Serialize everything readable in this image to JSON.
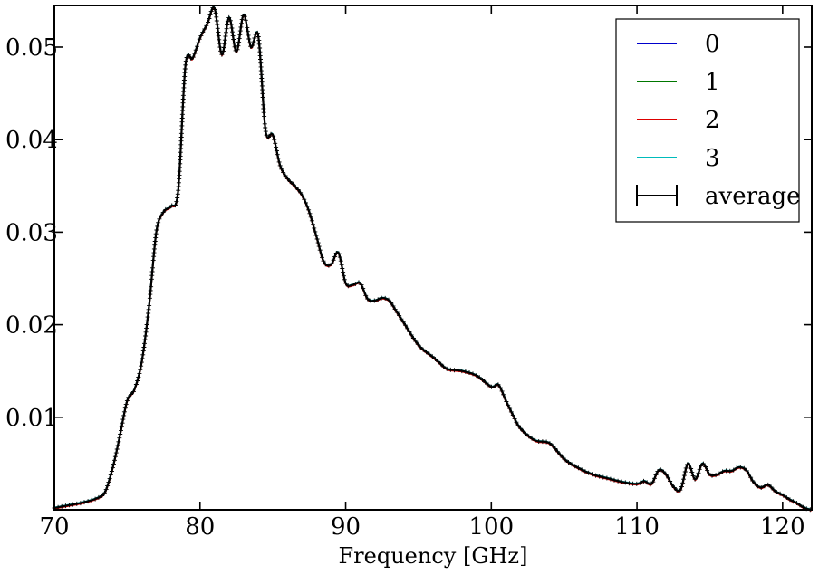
{
  "chart_data": {
    "type": "line",
    "title": "",
    "xlabel": "Frequency [GHz]",
    "ylabel": "",
    "xlim": [
      70,
      122
    ],
    "ylim": [
      0.0,
      0.0545
    ],
    "x_ticks": [
      70,
      80,
      90,
      100,
      110,
      120
    ],
    "x_tick_labels": [
      "70",
      "80",
      "90",
      "100",
      "110",
      "120"
    ],
    "y_ticks": [
      0.01,
      0.02,
      0.03,
      0.04,
      0.05
    ],
    "y_tick_labels": [
      "0.01",
      "0.02",
      "0.03",
      "0.04",
      "0.05"
    ],
    "grid": false,
    "legend_position": "top-right",
    "series": [
      {
        "name": "0",
        "color": "#0000cc"
      },
      {
        "name": "1",
        "color": "#007700"
      },
      {
        "name": "2",
        "color": "#dd0000"
      },
      {
        "name": "3",
        "color": "#00bbbb"
      },
      {
        "name": "average",
        "color": "#000000",
        "error_bars": true
      }
    ],
    "curve": {
      "x": [
        70,
        71,
        72,
        73,
        73.5,
        74,
        74.5,
        75,
        75.5,
        76,
        76.5,
        77,
        77.5,
        78,
        78.5,
        79,
        79.5,
        80,
        80.5,
        81,
        81.5,
        82,
        82.5,
        83,
        83.5,
        84,
        84.5,
        85,
        85.5,
        86,
        86.5,
        87,
        87.5,
        88,
        88.5,
        89,
        89.5,
        90,
        90.5,
        91,
        91.5,
        92,
        92.5,
        93,
        93.5,
        94,
        95,
        96,
        96.5,
        97,
        98,
        99,
        100,
        100.5,
        101,
        101.5,
        102,
        103,
        104,
        105,
        106,
        107,
        108,
        109,
        110,
        110.5,
        111,
        111.5,
        112,
        112.5,
        113,
        113.5,
        114,
        114.5,
        115,
        115.5,
        116,
        116.5,
        117,
        117.5,
        118,
        118.5,
        119,
        119.5,
        120,
        120.5,
        121,
        121.5,
        122
      ],
      "y": [
        0.0002,
        0.0005,
        0.0008,
        0.0013,
        0.002,
        0.0045,
        0.008,
        0.0118,
        0.013,
        0.016,
        0.022,
        0.03,
        0.0322,
        0.0328,
        0.0345,
        0.048,
        0.0488,
        0.051,
        0.0525,
        0.0542,
        0.0492,
        0.0532,
        0.0495,
        0.0535,
        0.05,
        0.0512,
        0.041,
        0.0405,
        0.0372,
        0.0358,
        0.035,
        0.034,
        0.0322,
        0.0295,
        0.0268,
        0.0265,
        0.0278,
        0.0245,
        0.0243,
        0.0245,
        0.0228,
        0.0226,
        0.0229,
        0.0226,
        0.0214,
        0.0202,
        0.0178,
        0.0165,
        0.0158,
        0.0152,
        0.015,
        0.0145,
        0.0133,
        0.0135,
        0.0118,
        0.0102,
        0.0088,
        0.0075,
        0.0072,
        0.0055,
        0.0045,
        0.0038,
        0.0034,
        0.003,
        0.0028,
        0.0031,
        0.0028,
        0.0043,
        0.0038,
        0.0025,
        0.0022,
        0.005,
        0.0033,
        0.005,
        0.0038,
        0.0038,
        0.0042,
        0.0042,
        0.0046,
        0.0043,
        0.003,
        0.0024,
        0.0027,
        0.002,
        0.0016,
        0.0011,
        0.0007,
        0.0002,
        0.0
      ]
    }
  }
}
